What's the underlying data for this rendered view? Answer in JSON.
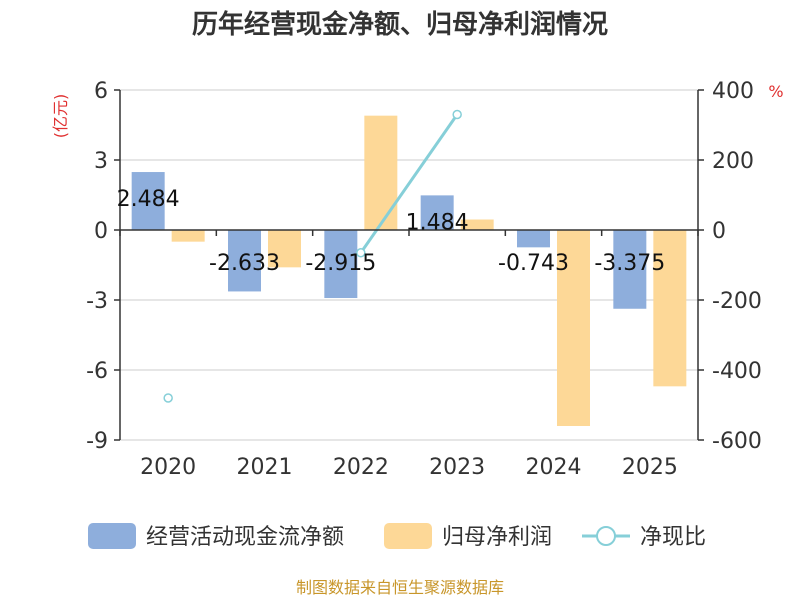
{
  "chart_data": {
    "type": "bar",
    "title": "历年经营现金净额、归母净利润情况",
    "categories": [
      "2020",
      "2021",
      "2022",
      "2023",
      "2024",
      "2025"
    ],
    "series": [
      {
        "name": "经营活动现金流净额",
        "type": "bar",
        "axis": "left",
        "color": "#8eaedc",
        "values": [
          2.484,
          -2.633,
          -2.915,
          1.484,
          -0.743,
          -3.375
        ],
        "labels": [
          "2.484",
          "-2.633",
          "-2.915",
          "1.484",
          "-0.743",
          "-3.375"
        ]
      },
      {
        "name": "归母净利润",
        "type": "bar",
        "axis": "left",
        "color": "#fdd897",
        "values": [
          -0.5,
          -1.6,
          4.9,
          0.45,
          -8.4,
          -6.7
        ]
      },
      {
        "name": "净现比",
        "type": "line",
        "axis": "right",
        "color": "#86cfd8",
        "values": [
          -480,
          null,
          -65,
          330,
          null,
          null
        ]
      }
    ],
    "y_left": {
      "unit": "(亿元)",
      "ylim": [
        -9,
        6
      ],
      "ticks": [
        "6",
        "3",
        "0",
        "-3",
        "-6",
        "-9"
      ]
    },
    "y_right": {
      "unit": "%",
      "ylim": [
        -600,
        400
      ],
      "ticks": [
        "400",
        "200",
        "0",
        "-200",
        "-400",
        "-600"
      ]
    },
    "legend_position": "bottom",
    "grid": true,
    "unit_color": "#e03030",
    "source": "制图数据来自恒生聚源数据库",
    "source_color": "#c8962a"
  }
}
